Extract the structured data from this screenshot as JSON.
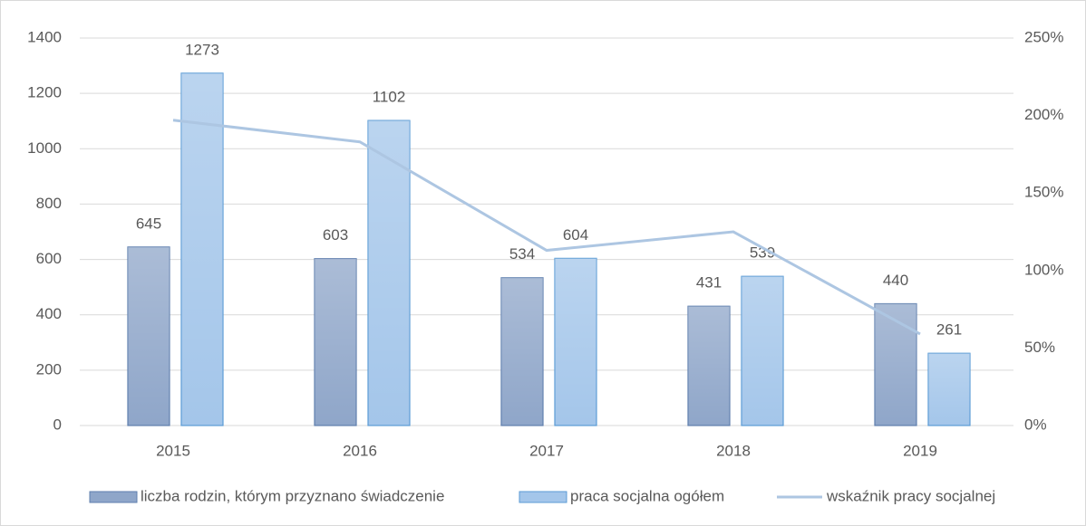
{
  "chart_data": {
    "type": "bar",
    "categories": [
      "2015",
      "2016",
      "2017",
      "2018",
      "2019"
    ],
    "series": [
      {
        "name": "liczba rodzin, którym przyznano świadczenie",
        "type": "bar",
        "color": "#8fa6c9",
        "stroke": "#5f7fae",
        "values": [
          645,
          603,
          534,
          431,
          440
        ]
      },
      {
        "name": "praca socjalna ogółem",
        "type": "bar",
        "color": "#a4c6ea",
        "stroke": "#5b9bd5",
        "values": [
          1273,
          1102,
          604,
          539,
          261
        ]
      },
      {
        "name": "wskaźnik pracy socjalnej",
        "type": "line",
        "axis": "y2",
        "color": "#adc6e2",
        "values": [
          197,
          183,
          113,
          125,
          59
        ]
      }
    ],
    "ylim": [
      0,
      1400
    ],
    "yticks": [
      0,
      200,
      400,
      600,
      800,
      1000,
      1200,
      1400
    ],
    "y2lim": [
      0,
      250
    ],
    "y2ticks": [
      {
        "value": 0,
        "label": "0%"
      },
      {
        "value": 50,
        "label": "50%"
      },
      {
        "value": 100,
        "label": "100%"
      },
      {
        "value": 150,
        "label": "150%"
      },
      {
        "value": 200,
        "label": "200%"
      },
      {
        "value": 250,
        "label": "250%"
      }
    ],
    "grid": true,
    "legend": "bottom"
  }
}
